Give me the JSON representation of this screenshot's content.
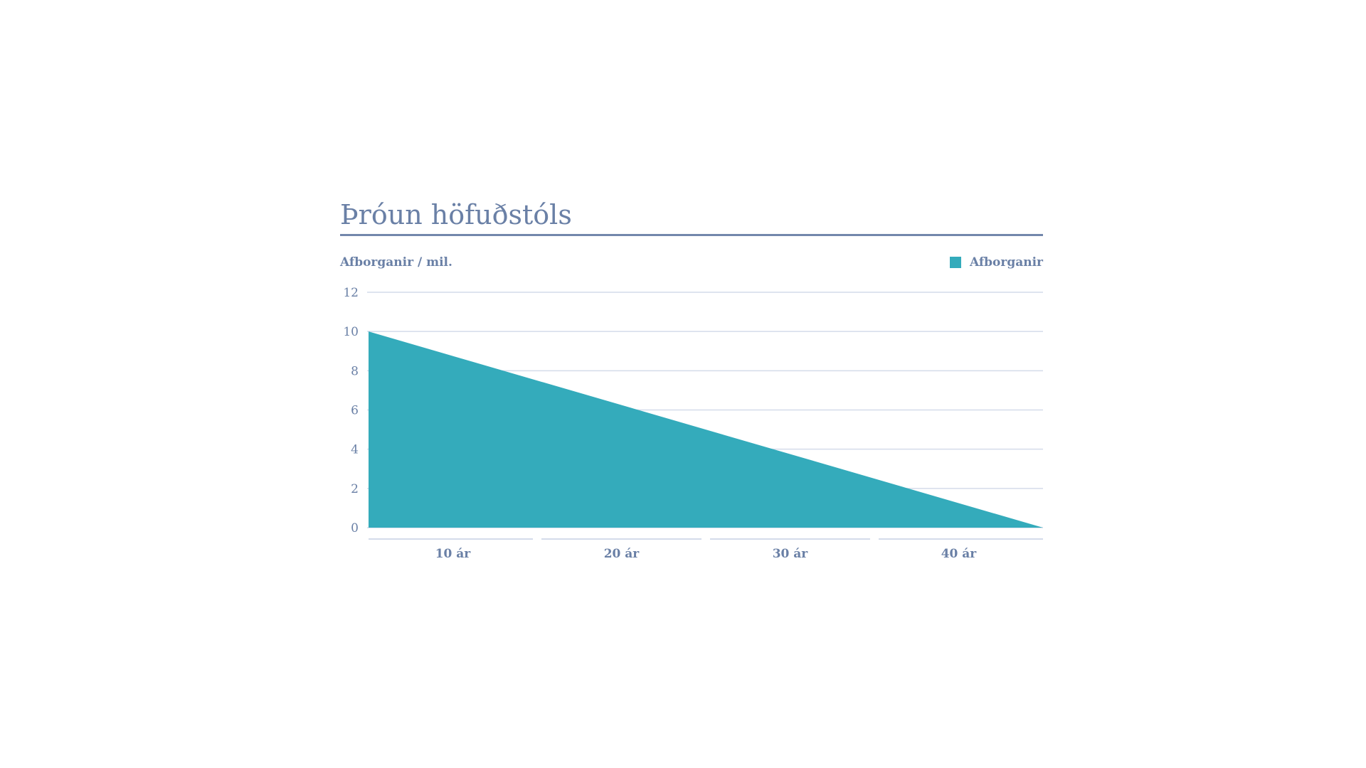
{
  "chart_data": {
    "type": "area",
    "title": "Þróun höfuðstóls",
    "ylabel": "Afborganir / mil.",
    "xlabel": "",
    "categories": [
      "10 ár",
      "20 ár",
      "30 ár",
      "40 ár"
    ],
    "x": [
      0,
      40
    ],
    "y_ticks": [
      "0",
      "2",
      "4",
      "6",
      "8",
      "10",
      "12"
    ],
    "ylim": [
      0,
      12
    ],
    "xlim": [
      0,
      40
    ],
    "series": [
      {
        "name": "Afborganir",
        "x": [
          0,
          40
        ],
        "values": [
          10,
          0
        ],
        "color": "#34abbb"
      }
    ],
    "grid": true,
    "legend": "top-right"
  },
  "colors": {
    "text": "#6a80a6",
    "rule": "#7387ac",
    "grid": "#d4dbea",
    "fill": "#34abbb"
  }
}
